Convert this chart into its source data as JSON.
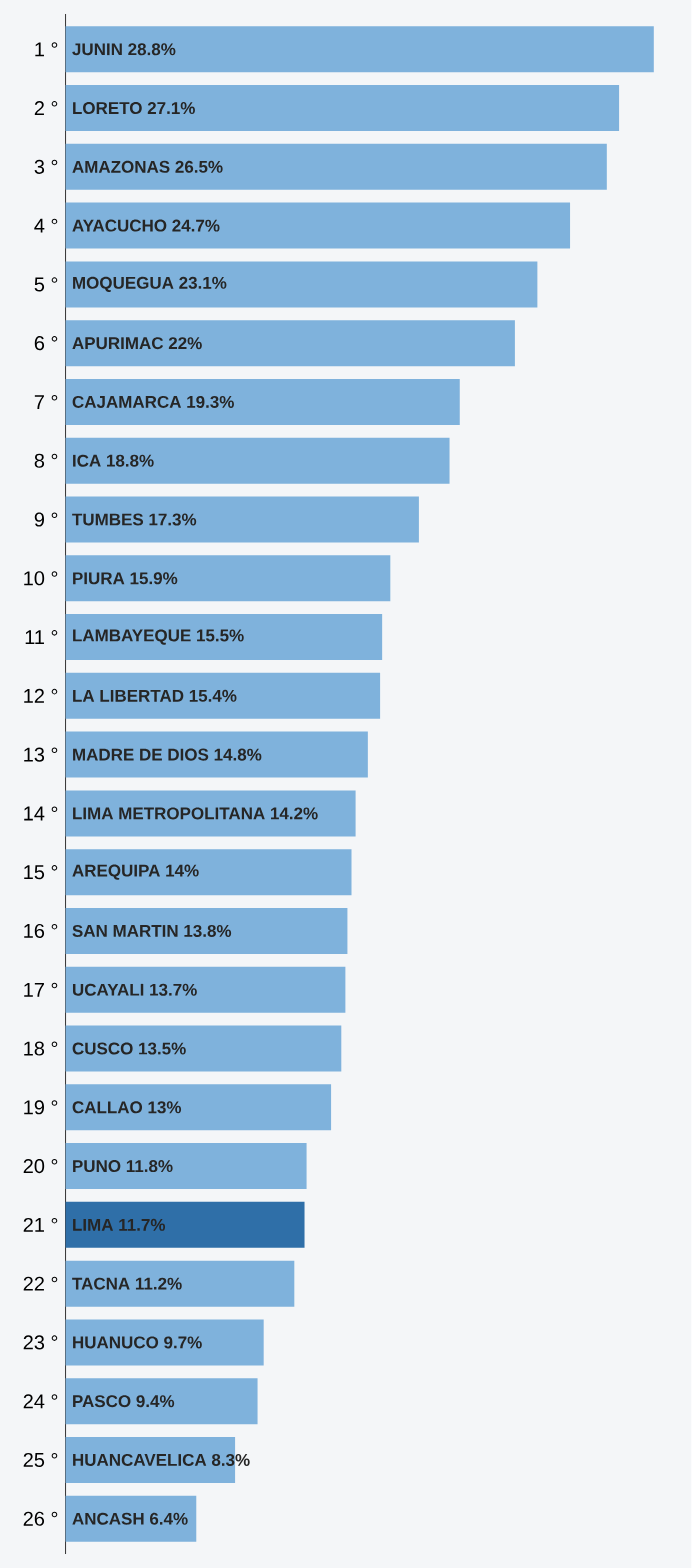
{
  "chart_data": {
    "type": "bar",
    "orientation": "horizontal",
    "tick_labels": "y",
    "categories": [
      "1 °",
      "2 °",
      "3 °",
      "4 °",
      "5 °",
      "6 °",
      "7 °",
      "8 °",
      "9 °",
      "10 °",
      "11 °",
      "12 °",
      "13 °",
      "14 °",
      "15 °",
      "16 °",
      "17 °",
      "18 °",
      "19 °",
      "20 °",
      "21 °",
      "22 °",
      "23 °",
      "24 °",
      "25 °",
      "26 °"
    ],
    "values": [
      28.8,
      27.1,
      26.5,
      24.7,
      23.1,
      22,
      19.3,
      18.8,
      17.3,
      15.9,
      15.5,
      15.4,
      14.8,
      14.2,
      14,
      13.8,
      13.7,
      13.5,
      13,
      11.8,
      11.7,
      11.2,
      9.7,
      9.4,
      8.3,
      6.4
    ],
    "value_labels": [
      "JUNIN 28.8%",
      "LORETO 27.1%",
      "AMAZONAS 26.5%",
      "AYACUCHO 24.7%",
      "MOQUEGUA 23.1%",
      "APURIMAC 22%",
      "CAJAMARCA 19.3%",
      "ICA 18.8%",
      "TUMBES 17.3%",
      "PIURA 15.9%",
      "LAMBAYEQUE 15.5%",
      "LA LIBERTAD 15.4%",
      "MADRE DE DIOS 14.8%",
      "LIMA METROPOLITANA 14.2%",
      "AREQUIPA 14%",
      "SAN MARTIN 13.8%",
      "UCAYALI 13.7%",
      "CUSCO 13.5%",
      "CALLAO 13%",
      "PUNO 11.8%",
      "LIMA 11.7%",
      "TACNA 11.2%",
      "HUANUCO 9.7%",
      "PASCO 9.4%",
      "HUANCAVELICA 8.3%",
      "ANCASH 6.4%"
    ],
    "colors": [
      "#7fb2dc",
      "#7fb2dc",
      "#7fb2dc",
      "#7fb2dc",
      "#7fb2dc",
      "#7fb2dc",
      "#7fb2dc",
      "#7fb2dc",
      "#7fb2dc",
      "#7fb2dc",
      "#7fb2dc",
      "#7fb2dc",
      "#7fb2dc",
      "#7fb2dc",
      "#7fb2dc",
      "#7fb2dc",
      "#7fb2dc",
      "#7fb2dc",
      "#7fb2dc",
      "#7fb2dc",
      "#2f6fa8",
      "#7fb2dc",
      "#7fb2dc",
      "#7fb2dc",
      "#7fb2dc",
      "#7fb2dc"
    ]
  }
}
